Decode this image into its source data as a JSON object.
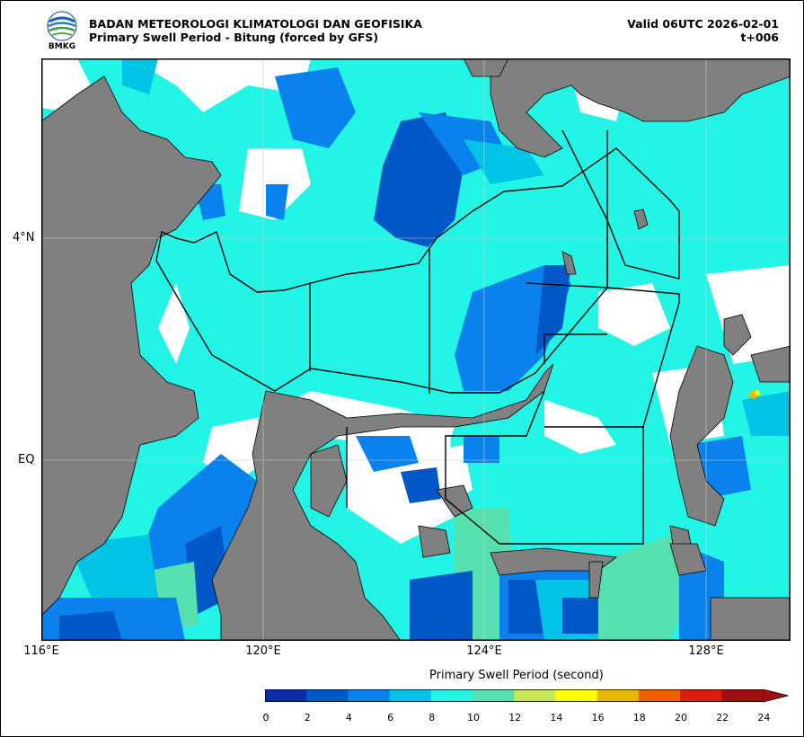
{
  "header": {
    "agency": "BADAN METEOROLOGI KLIMATOLOGI DAN GEOFISIKA",
    "product": "Primary Swell Period - Bitung (forced by GFS)",
    "valid": "Valid 06UTC 2026-02-01",
    "lead": "t+006",
    "logo_text": "BMKG"
  },
  "map": {
    "lat_labels": [
      "4°N",
      "EQ"
    ],
    "lon_labels": [
      "116°E",
      "120°E",
      "124°E",
      "128°E"
    ],
    "land_color": "#808080",
    "grid": true
  },
  "legend": {
    "title": "Primary Swell Period (second)",
    "ticks": [
      "0",
      "2",
      "4",
      "6",
      "8",
      "10",
      "12",
      "14",
      "16",
      "18",
      "20",
      "22",
      "24"
    ],
    "colors": [
      "#0a2ea6",
      "#0057c8",
      "#0a82ee",
      "#00c3e6",
      "#22f5e6",
      "#56e0b0",
      "#c8e658",
      "#ffff00",
      "#e8b800",
      "#f06000",
      "#dc1e10",
      "#a01010"
    ],
    "extend_color": "#a01010"
  }
}
